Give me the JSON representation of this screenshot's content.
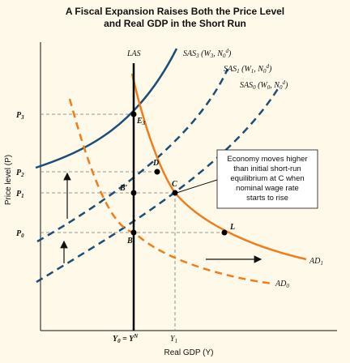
{
  "chart_data": {
    "type": "line",
    "title": "A Fiscal Expansion Raises Both the Price Level and Real GDP in the Short Run",
    "title_lines": [
      "A Fiscal Expansion Raises Both the Price Level",
      "and Real GDP in the Short Run"
    ],
    "xlabel": "Real GDP (Y)",
    "ylabel": "Price level (P)",
    "grid": false,
    "x_ticks": [
      "Y0 = YN",
      "Y1"
    ],
    "y_ticks": [
      "P3",
      "P2",
      "P1",
      "P0"
    ],
    "curves": [
      {
        "name": "LAS",
        "kind": "vertical",
        "color": "#000000"
      },
      {
        "name": "SAS3 (W3, N0d)",
        "color": "#1a4f7a",
        "style": "solid"
      },
      {
        "name": "SAS1 (W1, N0d)",
        "color": "#1a4f7a",
        "style": "dashed"
      },
      {
        "name": "SAS0 (W0, N0d)",
        "color": "#1a4f7a",
        "style": "dashed"
      },
      {
        "name": "AD1",
        "color": "#f07d1a",
        "style": "solid"
      },
      {
        "name": "AD0",
        "color": "#f07d1a",
        "style": "dashed"
      }
    ],
    "points": [
      {
        "label": "E3",
        "x": "Y0 = YN",
        "y": "P3"
      },
      {
        "label": "D",
        "x": "",
        "y": "P2"
      },
      {
        "label": "C",
        "x": "Y1",
        "y": "P1"
      },
      {
        "label": "B'",
        "x": "Y0 = YN",
        "y": "P1"
      },
      {
        "label": "B",
        "x": "Y0 = YN",
        "y": "P0"
      },
      {
        "label": "L",
        "x": "",
        "y": "P0"
      }
    ],
    "annotation": "Economy moves higher than initial short-run equilibrium at C when nominal wage rate starts to rise",
    "annotation_lines": [
      "Economy moves higher",
      "than initial short-run",
      "equilibrium at C when",
      "nominal wage rate",
      "starts to rise"
    ],
    "colors": {
      "background": "#fff9e9",
      "blue": "#1a4f7a",
      "orange": "#f07d1a",
      "black": "#000000"
    }
  }
}
